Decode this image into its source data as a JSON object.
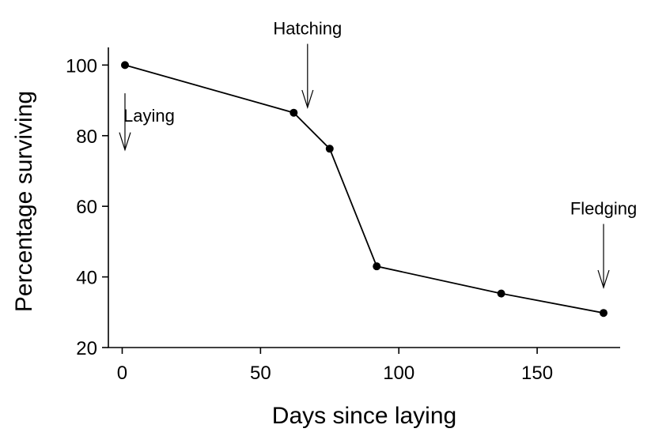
{
  "chart_data": {
    "type": "line",
    "title": "",
    "xlabel": "Days since laying",
    "ylabel": "Percentage surviving",
    "xlim": [
      -5,
      180
    ],
    "ylim": [
      20,
      105
    ],
    "x_ticks": [
      0,
      50,
      100,
      150
    ],
    "y_ticks": [
      20,
      40,
      60,
      80,
      100
    ],
    "grid": false,
    "series": [
      {
        "x": [
          1,
          62,
          75,
          92,
          137,
          174
        ],
        "y": [
          100,
          86.5,
          76.3,
          43,
          35.3,
          29.8
        ]
      }
    ],
    "annotations": [
      {
        "label": "Laying",
        "x": 1,
        "y_from": 92,
        "y_to": 76,
        "direction": "up"
      },
      {
        "label": "Hatching",
        "x": 67,
        "y_from": 106,
        "y_to": 88,
        "direction": "down"
      },
      {
        "label": "Fledging",
        "x": 174,
        "y_from": 55,
        "y_to": 37,
        "direction": "down"
      }
    ]
  }
}
